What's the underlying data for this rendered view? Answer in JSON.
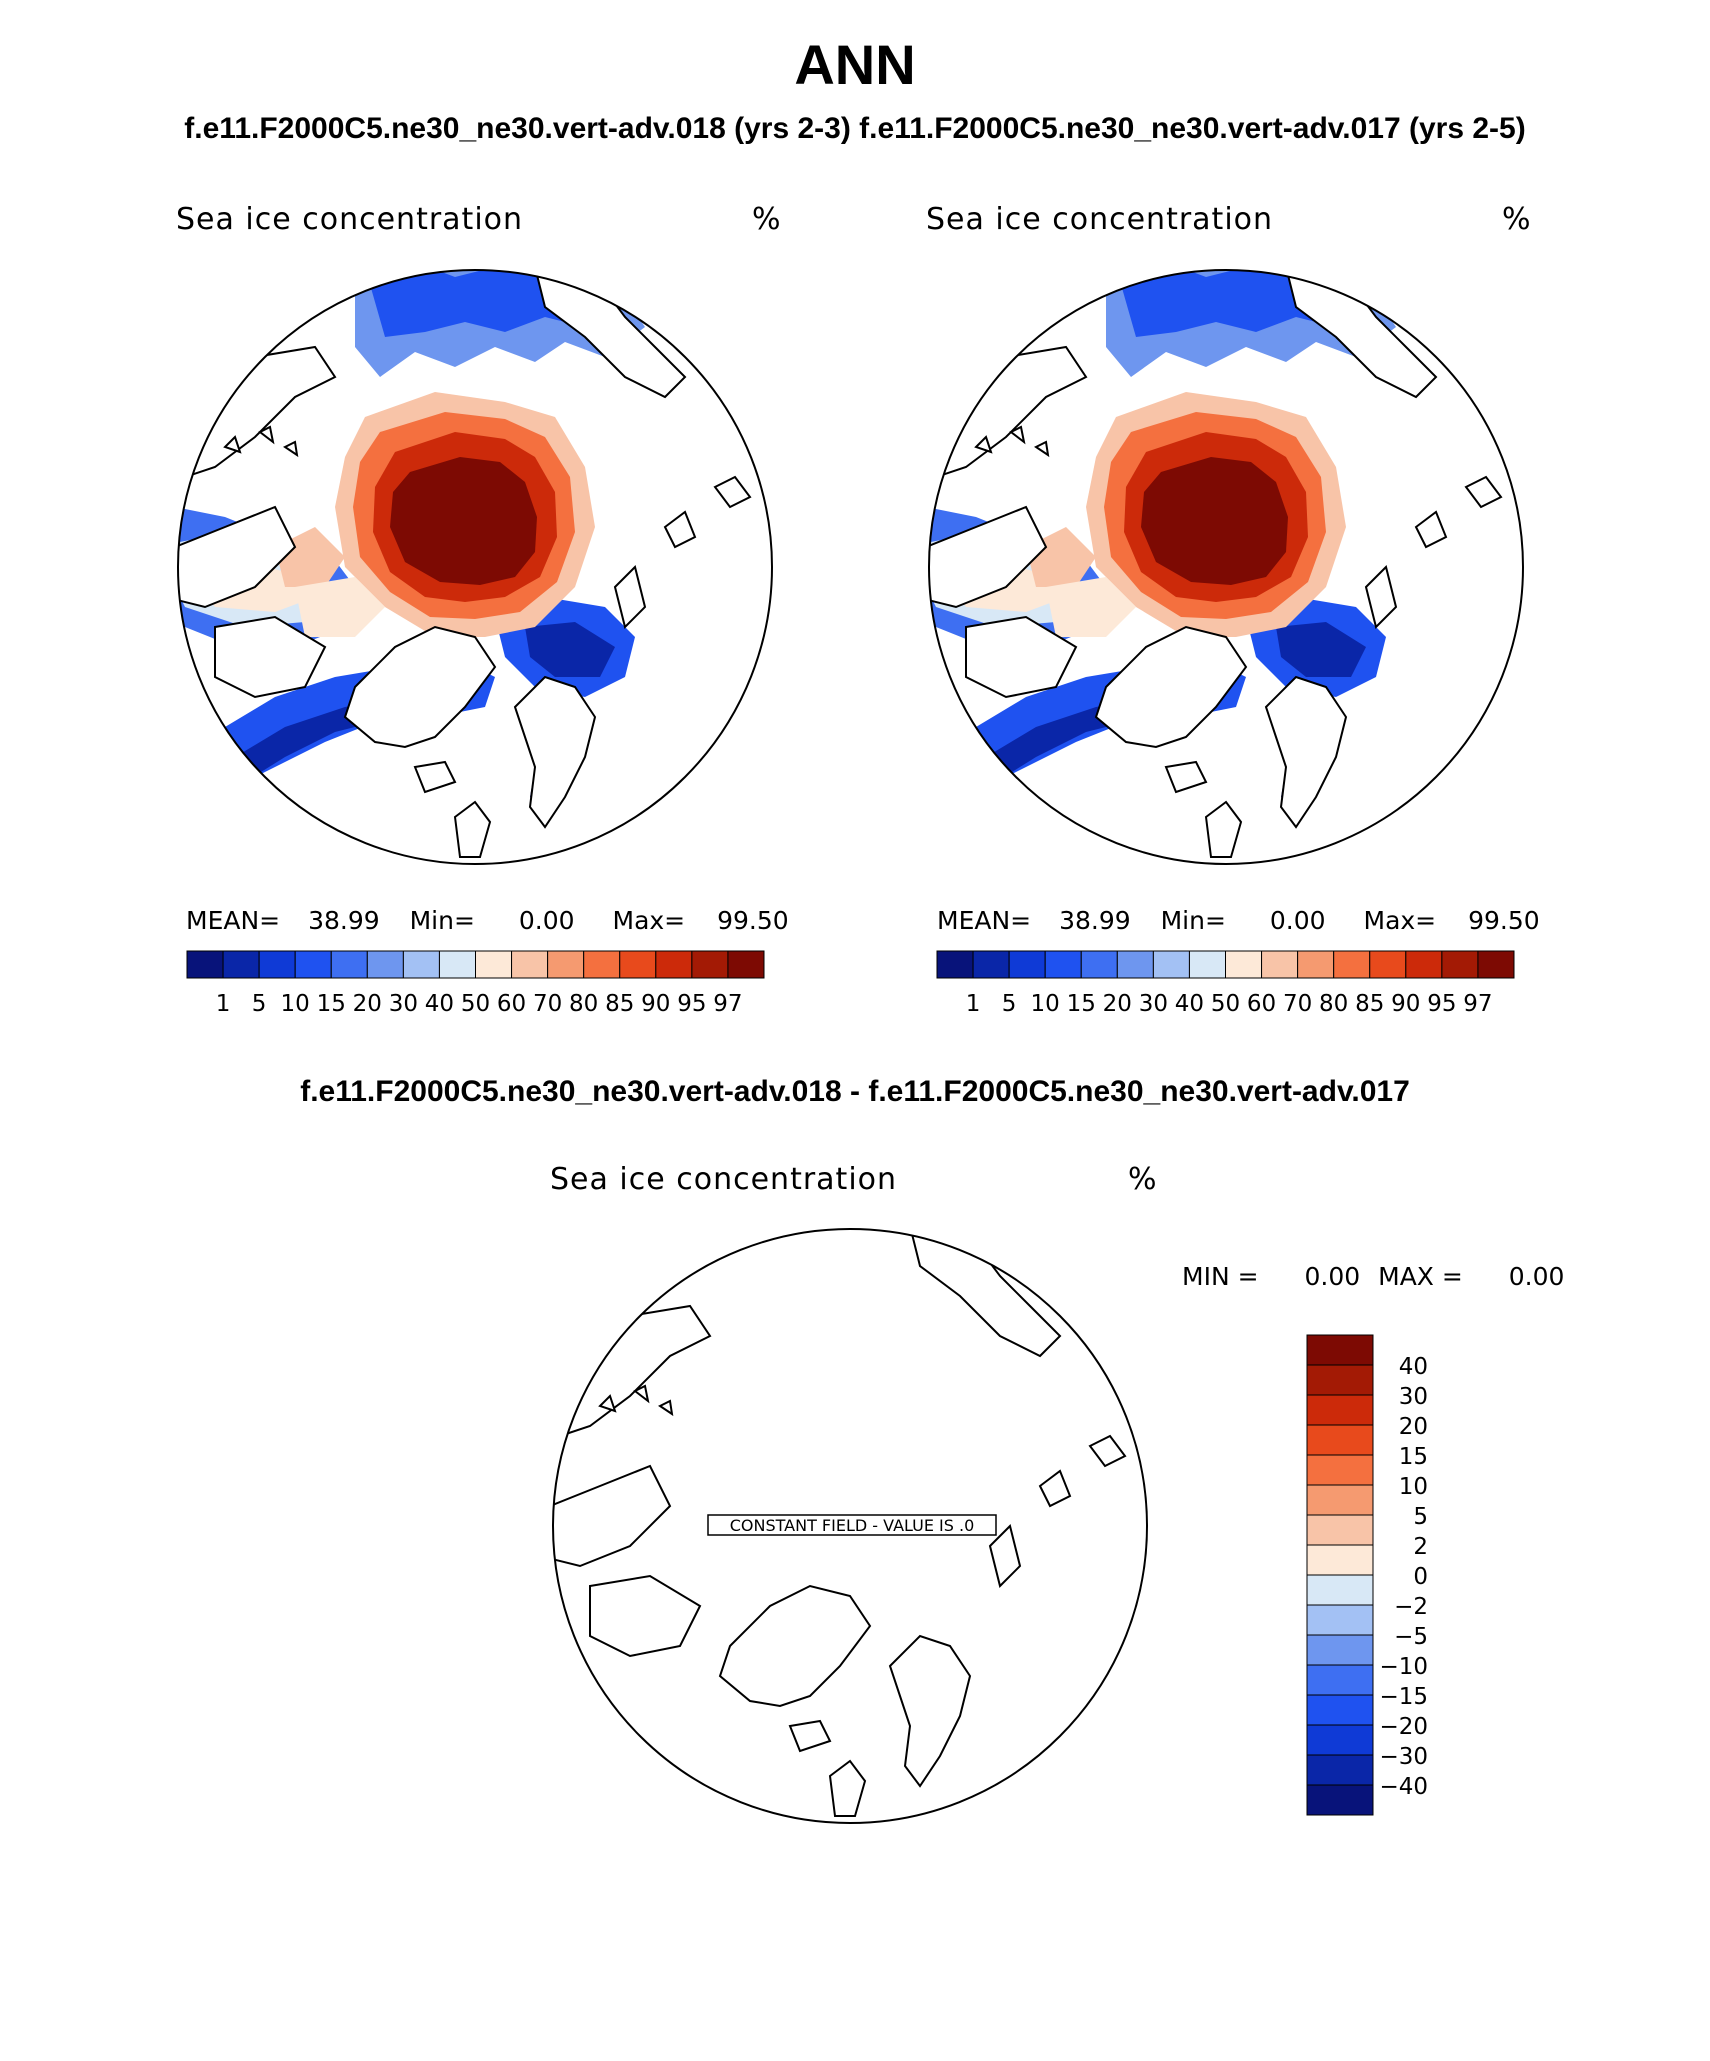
{
  "page": {
    "title": "ANN",
    "subtitle_left": "f.e11.F2000C5.ne30_ne30.vert-adv.018 (yrs 2-3)",
    "subtitle_right": "f.e11.F2000C5.ne30_ne30.vert-adv.017 (yrs 2-5)",
    "diff_title": "f.e11.F2000C5.ne30_ne30.vert-adv.018 - f.e11.F2000C5.ne30_ne30.vert-adv.017"
  },
  "colors": {
    "seq_palette": [
      "#08137a",
      "#0a26a8",
      "#0f3ad6",
      "#1f52f0",
      "#3e6ff2",
      "#6e96ef",
      "#a3c1f4",
      "#d8e8f6",
      "#fde9d8",
      "#f8c4a8",
      "#f59a70",
      "#f4703f",
      "#e84a1c",
      "#cc2a0a",
      "#a31a05",
      "#7d0a03"
    ],
    "diff_palette": [
      "#08137a",
      "#0a26a8",
      "#0f3ad6",
      "#1f52f0",
      "#3e6ff2",
      "#6e96ef",
      "#a3c1f4",
      "#d8e8f6",
      "#fde9d8",
      "#f8c4a8",
      "#f59a70",
      "#f4703f",
      "#e84a1c",
      "#cc2a0a",
      "#a31a05",
      "#7d0a03"
    ],
    "land_outline": "#000000"
  },
  "panels": [
    {
      "field_label": "Sea ice concentration",
      "units": "%",
      "mean_label": "MEAN=",
      "mean_value": "38.99",
      "min_label": "Min=",
      "min_value": "0.00",
      "max_label": "Max=",
      "max_value": "99.50",
      "colorbar_labels": [
        "1",
        "5",
        "10",
        "15",
        "20",
        "30",
        "40",
        "50",
        "60",
        "70",
        "80",
        "85",
        "90",
        "95",
        "97"
      ]
    },
    {
      "field_label": "Sea ice concentration",
      "units": "%",
      "mean_label": "MEAN=",
      "mean_value": "38.99",
      "min_label": "Min=",
      "min_value": "0.00",
      "max_label": "Max=",
      "max_value": "99.50",
      "colorbar_labels": [
        "1",
        "5",
        "10",
        "15",
        "20",
        "30",
        "40",
        "50",
        "60",
        "70",
        "80",
        "85",
        "90",
        "95",
        "97"
      ]
    }
  ],
  "diff_panel": {
    "field_label": "Sea ice concentration",
    "units": "%",
    "min_label": "MIN =",
    "min_value": "0.00",
    "max_label": "MAX =",
    "max_value": "0.00",
    "constant_field_text": "CONSTANT FIELD - VALUE IS .0",
    "colorbar_labels": [
      "40",
      "30",
      "20",
      "15",
      "10",
      "5",
      "2",
      "0",
      "−2",
      "−5",
      "−10",
      "−15",
      "−20",
      "−30",
      "−40"
    ]
  }
}
